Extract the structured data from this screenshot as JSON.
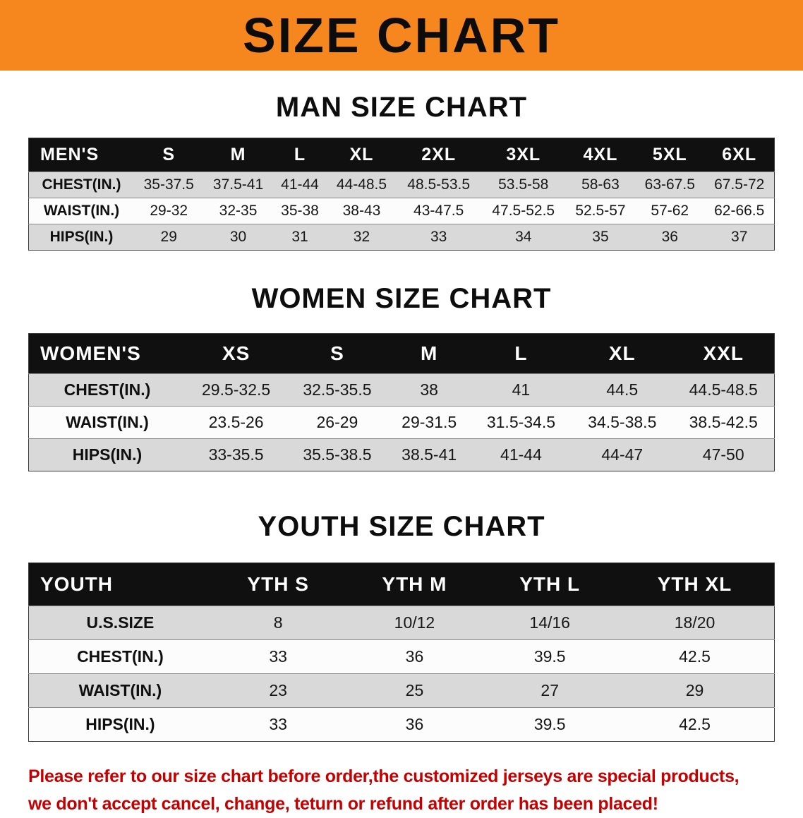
{
  "banner": {
    "title": "SIZE CHART"
  },
  "colors": {
    "banner_bg": "#f6871f",
    "table_header_bg": "#101010",
    "row_stripe_gray": "#d9d9d9",
    "disclaimer_red": "#c50000"
  },
  "men": {
    "heading": "MAN SIZE CHART",
    "header": [
      "MEN'S",
      "S",
      "M",
      "L",
      "XL",
      "2XL",
      "3XL",
      "4XL",
      "5XL",
      "6XL"
    ],
    "rows": [
      {
        "label": "CHEST(IN.)",
        "values": [
          "35-37.5",
          "37.5-41",
          "41-44",
          "44-48.5",
          "48.5-53.5",
          "53.5-58",
          "58-63",
          "63-67.5",
          "67.5-72"
        ]
      },
      {
        "label": "WAIST(IN.)",
        "values": [
          "29-32",
          "32-35",
          "35-38",
          "38-43",
          "43-47.5",
          "47.5-52.5",
          "52.5-57",
          "57-62",
          "62-66.5"
        ]
      },
      {
        "label": "HIPS(IN.)",
        "values": [
          "29",
          "30",
          "31",
          "32",
          "33",
          "34",
          "35",
          "36",
          "37"
        ]
      }
    ]
  },
  "women": {
    "heading": "WOMEN SIZE CHART",
    "header": [
      "WOMEN'S",
      "XS",
      "S",
      "M",
      "L",
      "XL",
      "XXL"
    ],
    "rows": [
      {
        "label": "CHEST(IN.)",
        "values": [
          "29.5-32.5",
          "32.5-35.5",
          "38",
          "41",
          "44.5",
          "44.5-48.5"
        ]
      },
      {
        "label": "WAIST(IN.)",
        "values": [
          "23.5-26",
          "26-29",
          "29-31.5",
          "31.5-34.5",
          "34.5-38.5",
          "38.5-42.5"
        ]
      },
      {
        "label": "HIPS(IN.)",
        "values": [
          "33-35.5",
          "35.5-38.5",
          "38.5-41",
          "41-44",
          "44-47",
          "47-50"
        ]
      }
    ]
  },
  "youth": {
    "heading": "YOUTH SIZE CHART",
    "header": [
      "YOUTH",
      "YTH S",
      "YTH M",
      "YTH L",
      "YTH XL"
    ],
    "rows": [
      {
        "label": "U.S.SIZE",
        "values": [
          "8",
          "10/12",
          "14/16",
          "18/20"
        ]
      },
      {
        "label": "CHEST(IN.)",
        "values": [
          "33",
          "36",
          "39.5",
          "42.5"
        ]
      },
      {
        "label": "WAIST(IN.)",
        "values": [
          "23",
          "25",
          "27",
          "29"
        ]
      },
      {
        "label": "HIPS(IN.)",
        "values": [
          "33",
          "36",
          "39.5",
          "42.5"
        ]
      }
    ]
  },
  "disclaimer": {
    "line1": "Please refer to our size chart before order,the customized jerseys are special products,",
    "line2": "we don't accept cancel, change, teturn or refund after order has been placed!"
  }
}
